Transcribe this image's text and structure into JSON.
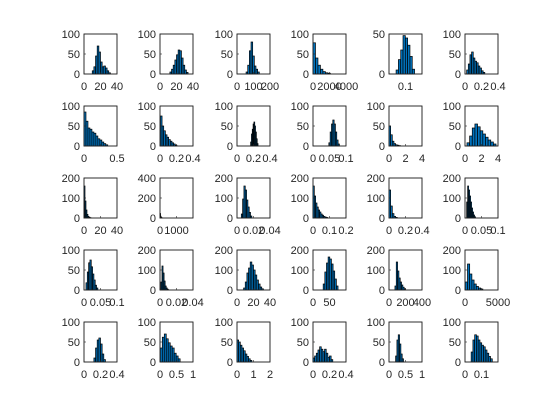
{
  "bar_face_color": "#0072bd",
  "bar_edge_color": "#000000",
  "chart_data": [
    {
      "type": "bar",
      "row": 0,
      "col": 0,
      "xlim": [
        0,
        40
      ],
      "ylim": [
        0,
        100
      ],
      "xticks": [
        "0",
        "20",
        "40"
      ],
      "yticks": [
        "0",
        "50",
        "100"
      ],
      "x": [
        11,
        13,
        15,
        17,
        19,
        21,
        23,
        25,
        27,
        29,
        31
      ],
      "values": [
        8,
        18,
        45,
        70,
        55,
        30,
        18,
        20,
        15,
        8,
        3
      ]
    },
    {
      "type": "bar",
      "row": 0,
      "col": 1,
      "xlim": [
        0,
        40
      ],
      "ylim": [
        0,
        100
      ],
      "xticks": [
        "0",
        "20",
        "40"
      ],
      "yticks": [
        "0",
        "50",
        "100"
      ],
      "x": [
        13,
        15,
        17,
        19,
        21,
        23,
        25,
        27,
        29,
        31,
        33
      ],
      "values": [
        5,
        12,
        22,
        35,
        48,
        60,
        58,
        40,
        22,
        10,
        4
      ]
    },
    {
      "type": "bar",
      "row": 0,
      "col": 2,
      "xlim": [
        0,
        200
      ],
      "ylim": [
        0,
        100
      ],
      "xticks": [
        "0",
        "100",
        "200"
      ],
      "yticks": [
        "0",
        "50",
        "100"
      ],
      "x": [
        60,
        70,
        80,
        90,
        100,
        110,
        120,
        130
      ],
      "values": [
        5,
        22,
        58,
        80,
        45,
        20,
        12,
        5
      ]
    },
    {
      "type": "bar",
      "row": 0,
      "col": 3,
      "xlim": [
        0,
        4000
      ],
      "ylim": [
        0,
        100
      ],
      "xticks": [
        "0",
        "2000",
        "4000"
      ],
      "yticks": [
        "0",
        "50",
        "100"
      ],
      "x": [
        150,
        450,
        750,
        1050,
        1350,
        1650,
        1950
      ],
      "values": [
        78,
        40,
        22,
        12,
        6,
        3,
        2
      ]
    },
    {
      "type": "bar",
      "row": 0,
      "col": 4,
      "xlim": [
        0.05,
        0.15
      ],
      "ylim": [
        0,
        50
      ],
      "xticks": [
        "",
        "0.1",
        ""
      ],
      "yticks": [
        "0",
        "50"
      ],
      "x": [
        0.075,
        0.082,
        0.089,
        0.096,
        0.103,
        0.11,
        0.117,
        0.124
      ],
      "values": [
        5,
        18,
        30,
        48,
        45,
        36,
        22,
        6
      ]
    },
    {
      "type": "bar",
      "row": 0,
      "col": 5,
      "xlim": [
        0,
        0.4
      ],
      "ylim": [
        0,
        100
      ],
      "xticks": [
        "0",
        "0.2",
        "0.4"
      ],
      "yticks": [
        "0",
        "50",
        "100"
      ],
      "x": [
        0.03,
        0.05,
        0.07,
        0.09,
        0.11,
        0.13,
        0.15,
        0.17,
        0.19,
        0.21,
        0.23
      ],
      "values": [
        10,
        25,
        48,
        55,
        40,
        32,
        28,
        20,
        15,
        8,
        4
      ]
    },
    {
      "type": "bar",
      "row": 1,
      "col": 0,
      "xlim": [
        0,
        0.5
      ],
      "ylim": [
        0,
        100
      ],
      "xticks": [
        "0",
        "",
        "0.5"
      ],
      "yticks": [
        "0",
        "50",
        "100"
      ],
      "x": [
        0.015,
        0.045,
        0.075,
        0.105,
        0.135,
        0.165,
        0.195,
        0.225,
        0.255,
        0.285,
        0.315,
        0.345
      ],
      "values": [
        85,
        62,
        45,
        42,
        35,
        32,
        25,
        18,
        15,
        10,
        6,
        3
      ]
    },
    {
      "type": "bar",
      "row": 1,
      "col": 1,
      "xlim": [
        0,
        0.4
      ],
      "ylim": [
        0,
        100
      ],
      "xticks": [
        "0",
        "0.2",
        "0.4"
      ],
      "yticks": [
        "0",
        "50",
        "100"
      ],
      "x": [
        0.015,
        0.035,
        0.055,
        0.075,
        0.095,
        0.115,
        0.135,
        0.155,
        0.175,
        0.195
      ],
      "values": [
        75,
        50,
        38,
        28,
        22,
        16,
        12,
        8,
        5,
        2
      ]
    },
    {
      "type": "bar",
      "row": 1,
      "col": 2,
      "xlim": [
        0,
        0.4
      ],
      "ylim": [
        0,
        100
      ],
      "xticks": [
        "0",
        "0.2",
        "0.4"
      ],
      "yticks": [
        "0",
        "50",
        "100"
      ],
      "x": [
        0.17,
        0.18,
        0.19,
        0.2,
        0.21,
        0.22,
        0.23,
        0.24,
        0.25
      ],
      "values": [
        10,
        30,
        42,
        55,
        60,
        50,
        35,
        18,
        6
      ]
    },
    {
      "type": "bar",
      "row": 1,
      "col": 3,
      "xlim": [
        0,
        0.1
      ],
      "ylim": [
        0,
        100
      ],
      "xticks": [
        "0",
        "0.05",
        "0.1"
      ],
      "yticks": [
        "0",
        "50",
        "100"
      ],
      "x": [
        0.05,
        0.054,
        0.058,
        0.062,
        0.066,
        0.07,
        0.074,
        0.078
      ],
      "values": [
        8,
        35,
        55,
        65,
        55,
        35,
        15,
        5
      ]
    },
    {
      "type": "bar",
      "row": 1,
      "col": 4,
      "xlim": [
        0,
        4
      ],
      "ylim": [
        0,
        100
      ],
      "xticks": [
        "0",
        "2",
        "4"
      ],
      "yticks": [
        "0",
        "50",
        "100"
      ],
      "x": [
        0.1,
        0.3,
        0.5,
        0.7,
        0.9,
        1.1,
        1.3
      ],
      "values": [
        50,
        28,
        12,
        6,
        3,
        2,
        1
      ]
    },
    {
      "type": "bar",
      "row": 1,
      "col": 5,
      "xlim": [
        0,
        5
      ],
      "ylim": [
        0,
        100
      ],
      "xticks": [
        "0",
        "2",
        "4"
      ],
      "yticks": [
        "0",
        "50",
        "100"
      ],
      "x": [
        0.5,
        0.9,
        1.3,
        1.7,
        2.1,
        2.5,
        2.9,
        3.3,
        3.7,
        4.1,
        4.5
      ],
      "values": [
        8,
        25,
        45,
        55,
        48,
        38,
        30,
        22,
        15,
        10,
        5
      ]
    },
    {
      "type": "bar",
      "row": 2,
      "col": 0,
      "xlim": [
        0,
        40
      ],
      "ylim": [
        0,
        200
      ],
      "xticks": [
        "0",
        "20",
        "40"
      ],
      "yticks": [
        "0",
        "100",
        "200"
      ],
      "x": [
        0.6,
        1.8,
        3.0,
        4.2,
        5.4,
        6.6,
        7.8
      ],
      "values": [
        160,
        85,
        40,
        18,
        8,
        4,
        2
      ]
    },
    {
      "type": "bar",
      "row": 2,
      "col": 1,
      "xlim": [
        0,
        1500
      ],
      "ylim": [
        0,
        400
      ],
      "xticks": [
        "0",
        "1000",
        ""
      ],
      "yticks": [
        "0",
        "200",
        "400"
      ],
      "x": [
        10,
        30,
        50,
        70,
        90
      ],
      "values": [
        45,
        18,
        8,
        4,
        2
      ]
    },
    {
      "type": "bar",
      "row": 2,
      "col": 2,
      "xlim": [
        0,
        0.05
      ],
      "ylim": [
        0,
        200
      ],
      "xticks": [
        "0",
        "0.02",
        "0.04"
      ],
      "yticks": [
        "0",
        "100",
        "200"
      ],
      "x": [
        0.0075,
        0.0095,
        0.0115,
        0.0135,
        0.0155,
        0.0175,
        0.0195,
        0.0215
      ],
      "values": [
        20,
        95,
        160,
        140,
        90,
        55,
        28,
        10
      ]
    },
    {
      "type": "bar",
      "row": 2,
      "col": 3,
      "xlim": [
        0,
        0.25
      ],
      "ylim": [
        0,
        200
      ],
      "xticks": [
        "0",
        "0.1",
        "0.2"
      ],
      "yticks": [
        "0",
        "100",
        "200"
      ],
      "x": [
        0.005,
        0.015,
        0.025,
        0.035,
        0.045,
        0.055,
        0.065,
        0.075,
        0.085,
        0.095,
        0.105
      ],
      "values": [
        160,
        110,
        75,
        55,
        40,
        30,
        20,
        14,
        8,
        5,
        3
      ]
    },
    {
      "type": "bar",
      "row": 2,
      "col": 4,
      "xlim": [
        0,
        0.4
      ],
      "ylim": [
        0,
        200
      ],
      "xticks": [
        "0",
        "0.2",
        "0.4"
      ],
      "yticks": [
        "0",
        "100",
        "200"
      ],
      "x": [
        0.01,
        0.03,
        0.05,
        0.07,
        0.09
      ],
      "values": [
        140,
        60,
        22,
        8,
        3
      ]
    },
    {
      "type": "bar",
      "row": 2,
      "col": 5,
      "xlim": [
        0,
        0.1
      ],
      "ylim": [
        0,
        200
      ],
      "xticks": [
        "0",
        "0.05",
        "0.1"
      ],
      "yticks": [
        "0",
        "100",
        "200"
      ],
      "x": [
        0.0065,
        0.0095,
        0.0125,
        0.0155,
        0.0185,
        0.0215,
        0.0245,
        0.0275,
        0.0305
      ],
      "values": [
        80,
        160,
        140,
        110,
        80,
        50,
        30,
        15,
        6
      ]
    },
    {
      "type": "bar",
      "row": 3,
      "col": 0,
      "xlim": [
        0,
        0.1
      ],
      "ylim": [
        0,
        100
      ],
      "xticks": [
        "0",
        "0.05",
        "0.1"
      ],
      "yticks": [
        "0",
        "50",
        "100"
      ],
      "x": [
        0.008,
        0.012,
        0.016,
        0.02,
        0.024,
        0.028,
        0.032,
        0.036,
        0.04
      ],
      "values": [
        18,
        45,
        68,
        75,
        58,
        40,
        25,
        12,
        5
      ]
    },
    {
      "type": "bar",
      "row": 3,
      "col": 1,
      "xlim": [
        0,
        0.05
      ],
      "ylim": [
        0,
        200
      ],
      "xticks": [
        "0",
        "0.02",
        "0.04"
      ],
      "yticks": [
        "0",
        "100",
        "200"
      ],
      "x": [
        0.0022,
        0.0038,
        0.0054,
        0.007,
        0.0086,
        0.0102,
        0.0118
      ],
      "values": [
        40,
        120,
        85,
        45,
        20,
        10,
        4
      ]
    },
    {
      "type": "bar",
      "row": 3,
      "col": 2,
      "xlim": [
        0,
        40
      ],
      "ylim": [
        0,
        200
      ],
      "xticks": [
        "0",
        "20",
        "40"
      ],
      "yticks": [
        "0",
        "100",
        "200"
      ],
      "x": [
        9,
        11,
        13,
        15,
        17,
        19,
        21,
        23,
        25,
        27,
        29,
        31
      ],
      "values": [
        10,
        40,
        85,
        110,
        140,
        125,
        100,
        75,
        50,
        30,
        15,
        6
      ]
    },
    {
      "type": "bar",
      "row": 3,
      "col": 3,
      "xlim": [
        0,
        60
      ],
      "ylim": [
        0,
        200
      ],
      "xticks": [
        "0",
        "50",
        ""
      ],
      "yticks": [
        "0",
        "100",
        "200"
      ],
      "x": [
        20,
        23,
        26,
        29,
        32,
        35,
        38,
        41,
        44
      ],
      "values": [
        30,
        90,
        135,
        165,
        155,
        130,
        95,
        55,
        20
      ]
    },
    {
      "type": "bar",
      "row": 3,
      "col": 4,
      "xlim": [
        0,
        500
      ],
      "ylim": [
        0,
        200
      ],
      "xticks": [
        "0",
        "200",
        "400"
      ],
      "yticks": [
        "0",
        "100",
        "200"
      ],
      "x": [
        100,
        120,
        140,
        160,
        180,
        200,
        220,
        240
      ],
      "values": [
        20,
        140,
        95,
        60,
        40,
        25,
        14,
        6
      ]
    },
    {
      "type": "bar",
      "row": 3,
      "col": 5,
      "xlim": [
        0,
        6000
      ],
      "ylim": [
        0,
        200
      ],
      "xticks": [
        "0",
        "",
        "5000"
      ],
      "yticks": [
        "0",
        "100",
        "200"
      ],
      "x": [
        250,
        650,
        1050,
        1450,
        1850,
        2250,
        2650,
        3050
      ],
      "values": [
        40,
        130,
        80,
        50,
        30,
        18,
        10,
        5
      ]
    },
    {
      "type": "bar",
      "row": 4,
      "col": 0,
      "xlim": [
        0,
        0.4
      ],
      "ylim": [
        0,
        100
      ],
      "xticks": [
        "0",
        "0.2",
        "0.4"
      ],
      "yticks": [
        "0",
        "50",
        "100"
      ],
      "x": [
        0.13,
        0.15,
        0.17,
        0.19,
        0.21,
        0.23,
        0.25
      ],
      "values": [
        10,
        35,
        55,
        60,
        45,
        20,
        6
      ]
    },
    {
      "type": "bar",
      "row": 4,
      "col": 1,
      "xlim": [
        0,
        1
      ],
      "ylim": [
        0,
        100
      ],
      "xticks": [
        "0",
        "0.5",
        "1"
      ],
      "yticks": [
        "0",
        "50",
        "100"
      ],
      "x": [
        0.04,
        0.1,
        0.16,
        0.22,
        0.28,
        0.34,
        0.4,
        0.46,
        0.52,
        0.58
      ],
      "values": [
        35,
        62,
        70,
        58,
        48,
        40,
        35,
        22,
        15,
        8
      ]
    },
    {
      "type": "bar",
      "row": 4,
      "col": 2,
      "xlim": [
        0,
        2
      ],
      "ylim": [
        0,
        100
      ],
      "xticks": [
        "0",
        "1",
        "2"
      ],
      "yticks": [
        "0",
        "50",
        "100"
      ],
      "x": [
        0.05,
        0.15,
        0.25,
        0.35,
        0.45,
        0.55,
        0.65,
        0.75,
        0.85
      ],
      "values": [
        55,
        50,
        42,
        35,
        28,
        20,
        14,
        8,
        4
      ]
    },
    {
      "type": "bar",
      "row": 4,
      "col": 3,
      "xlim": [
        0,
        0.4
      ],
      "ylim": [
        0,
        100
      ],
      "xticks": [
        "0",
        "0.2",
        "0.4"
      ],
      "yticks": [
        "0",
        "50",
        "100"
      ],
      "x": [
        0.01,
        0.03,
        0.05,
        0.07,
        0.09,
        0.11,
        0.13,
        0.15,
        0.17,
        0.19,
        0.21,
        0.23
      ],
      "values": [
        10,
        15,
        22,
        30,
        38,
        32,
        26,
        32,
        22,
        12,
        15,
        6
      ]
    },
    {
      "type": "bar",
      "row": 4,
      "col": 4,
      "xlim": [
        0,
        1
      ],
      "ylim": [
        0,
        100
      ],
      "xticks": [
        "0",
        "0.5",
        "1"
      ],
      "yticks": [
        "0",
        "50",
        "100"
      ],
      "x": [
        0.22,
        0.26,
        0.3,
        0.34,
        0.38,
        0.42
      ],
      "values": [
        15,
        55,
        68,
        45,
        20,
        8
      ]
    },
    {
      "type": "bar",
      "row": 4,
      "col": 5,
      "xlim": [
        0,
        0.15
      ],
      "ylim": [
        0,
        100
      ],
      "xticks": [
        "0",
        "0.1",
        ""
      ],
      "yticks": [
        "0",
        "50",
        "100"
      ],
      "x": [
        0.032,
        0.04,
        0.048,
        0.056,
        0.064,
        0.072,
        0.08,
        0.088,
        0.096,
        0.104,
        0.112,
        0.12
      ],
      "values": [
        25,
        55,
        68,
        65,
        55,
        48,
        42,
        38,
        30,
        22,
        14,
        8
      ]
    }
  ]
}
